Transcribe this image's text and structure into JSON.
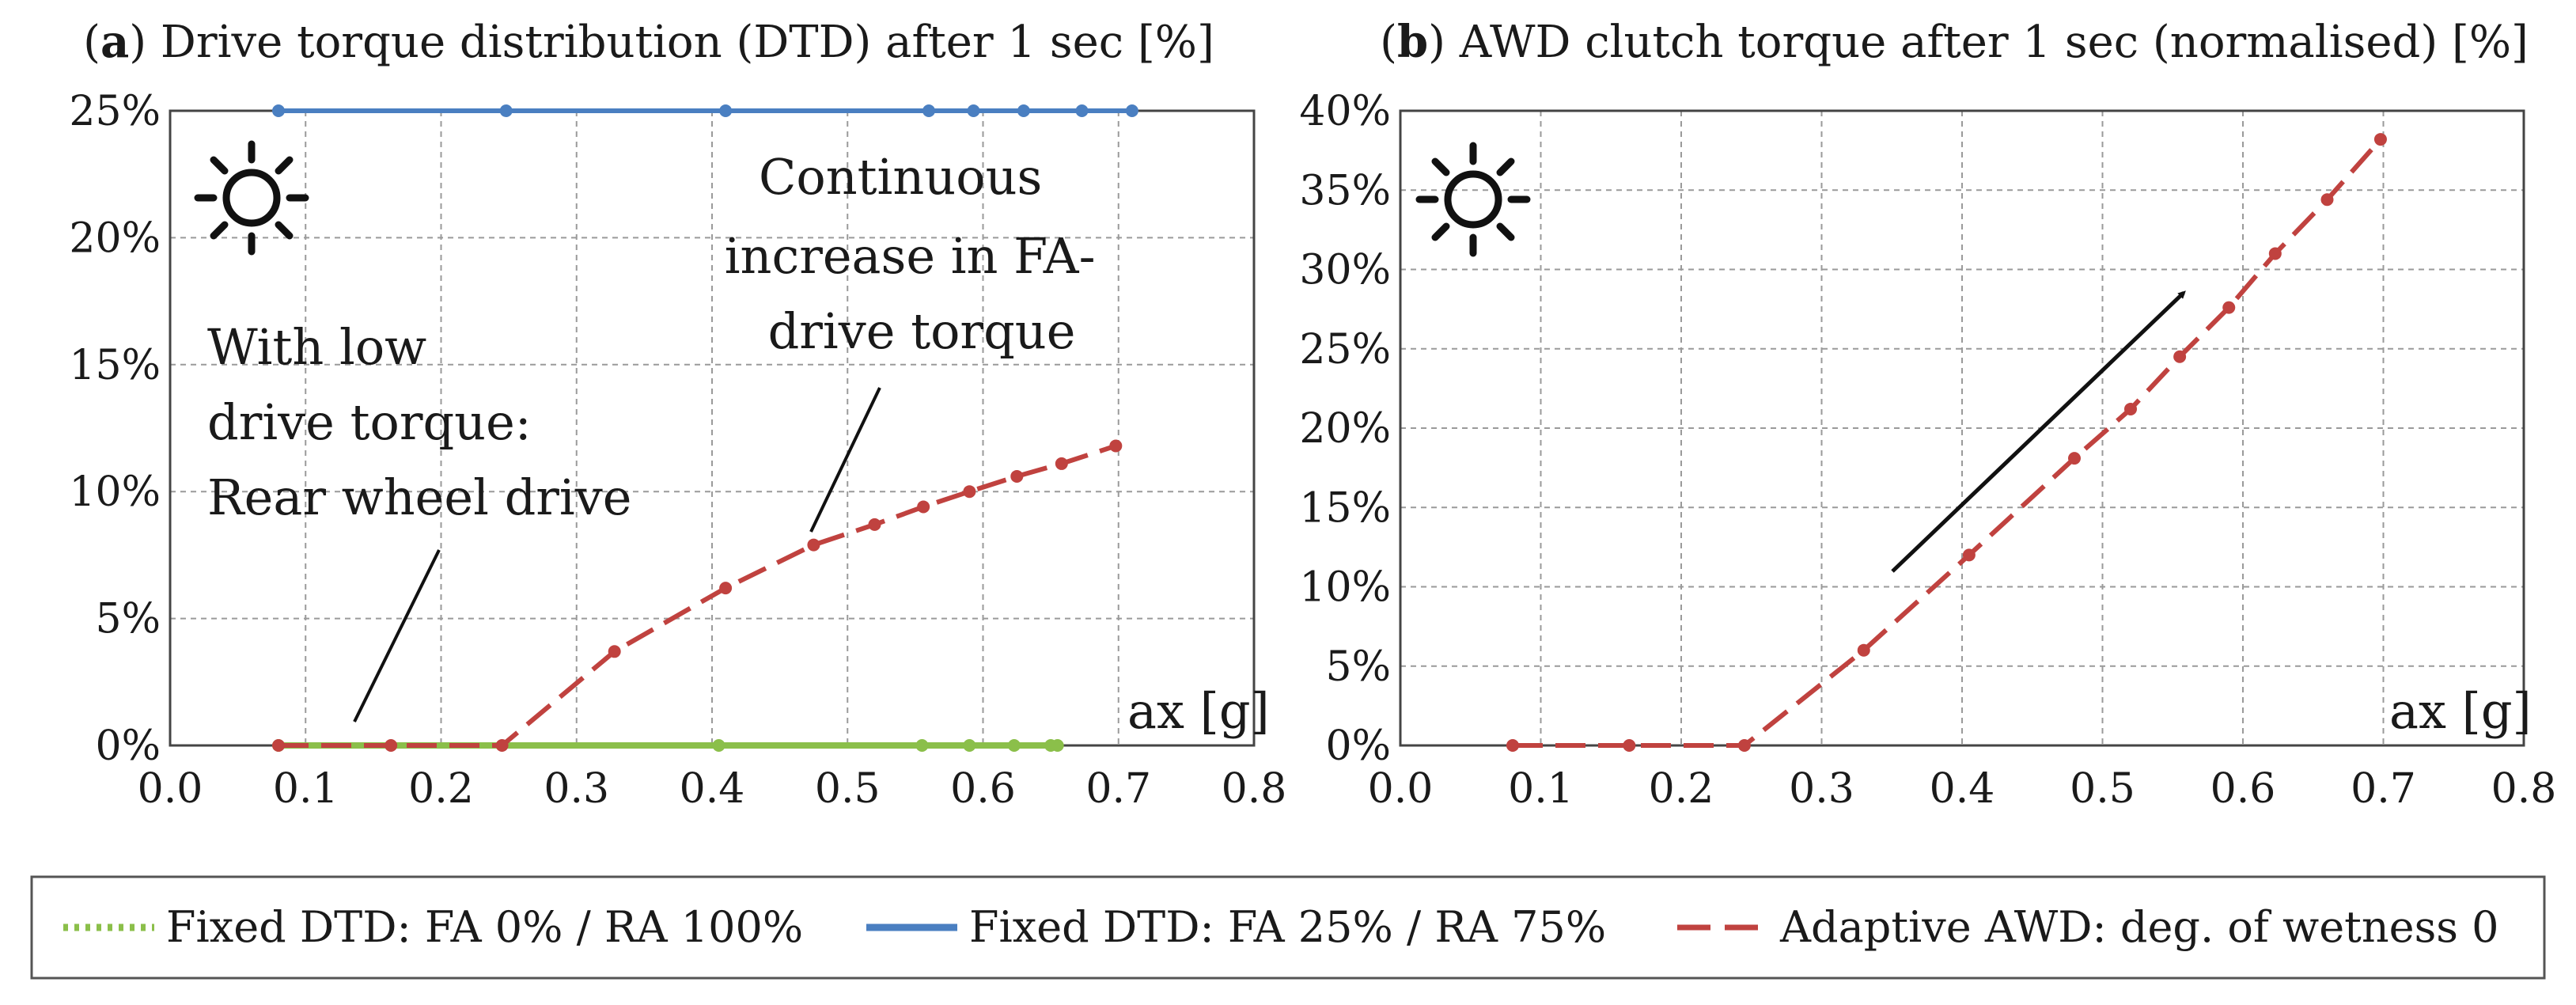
{
  "chart_data": [
    {
      "id": "a",
      "type": "line",
      "title_bold": "a",
      "title": "Drive torque distribution (DTD) after 1 sec [%]",
      "xlabel": "ax [g]",
      "ylabel": "",
      "xlim": [
        0.0,
        0.8
      ],
      "ylim": [
        0,
        25
      ],
      "xticks": [
        "0.0",
        "0.1",
        "0.2",
        "0.3",
        "0.4",
        "0.5",
        "0.6",
        "0.7",
        "0.8"
      ],
      "yticks": [
        "0%",
        "5%",
        "10%",
        "15%",
        "20%",
        "25%"
      ],
      "grid": true,
      "series": [
        {
          "key": "green",
          "name": "Fixed DTD: FA 0% / RA 100%",
          "x": [
            0.08,
            0.405,
            0.555,
            0.59,
            0.623,
            0.65,
            0.655
          ],
          "y": [
            0,
            0,
            0,
            0,
            0,
            0,
            0
          ]
        },
        {
          "key": "blue",
          "name": "Fixed DTD: FA 25% / RA 75%",
          "x": [
            0.08,
            0.248,
            0.41,
            0.56,
            0.593,
            0.63,
            0.673,
            0.71
          ],
          "y": [
            25,
            25,
            25,
            25,
            25,
            25,
            25,
            25
          ]
        },
        {
          "key": "red",
          "name": "Adaptive AWD: deg. of wetness 0",
          "x": [
            0.08,
            0.163,
            0.245,
            0.328,
            0.41,
            0.475,
            0.52,
            0.556,
            0.59,
            0.625,
            0.658,
            0.698
          ],
          "y": [
            0,
            0,
            0,
            3.7,
            6.2,
            7.9,
            8.7,
            9.4,
            10.0,
            10.6,
            11.1,
            11.8
          ]
        }
      ],
      "annotations": [
        {
          "lines": [
            "Continuous",
            "increase in FA-",
            "drive torque"
          ]
        },
        {
          "lines": [
            "With low",
            "drive torque:",
            "Rear wheel drive"
          ]
        }
      ]
    },
    {
      "id": "b",
      "type": "line",
      "title_bold": "b",
      "title": "AWD clutch torque after 1 sec (normalised) [%]",
      "xlabel": "ax [g]",
      "ylabel": "",
      "xlim": [
        0.0,
        0.8
      ],
      "ylim": [
        0,
        40
      ],
      "xticks": [
        "0.0",
        "0.1",
        "0.2",
        "0.3",
        "0.4",
        "0.5",
        "0.6",
        "0.7",
        "0.8"
      ],
      "yticks": [
        "0%",
        "5%",
        "10%",
        "15%",
        "20%",
        "25%",
        "30%",
        "35%",
        "40%"
      ],
      "grid": true,
      "series": [
        {
          "key": "red",
          "name": "Adaptive AWD: deg. of wetness 0",
          "x": [
            0.08,
            0.163,
            0.245,
            0.33,
            0.405,
            0.48,
            0.52,
            0.555,
            0.59,
            0.623,
            0.66,
            0.698
          ],
          "y": [
            0,
            0,
            0,
            6.0,
            12.0,
            18.1,
            21.2,
            24.5,
            27.6,
            31.0,
            34.4,
            38.2
          ]
        }
      ]
    }
  ],
  "legend": [
    {
      "key": "green",
      "label": "Fixed DTD: FA 0% / RA 100%",
      "color": "#8bbf4a",
      "style": "dotted"
    },
    {
      "key": "blue",
      "label": "Fixed DTD: FA 25% / RA 75%",
      "color": "#4a7fc1",
      "style": "solid"
    },
    {
      "key": "red",
      "label": "Adaptive AWD: deg. of wetness 0",
      "color": "#c0423f",
      "style": "dashed"
    }
  ],
  "icons": [
    "sun-icon",
    "sun-icon"
  ]
}
